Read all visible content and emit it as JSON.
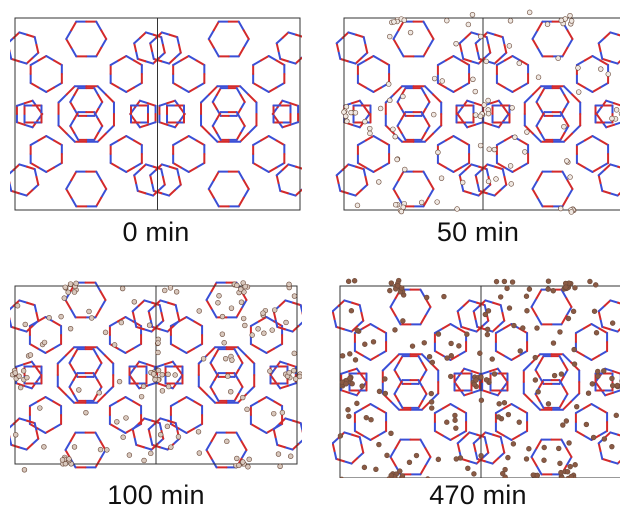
{
  "panels": [
    {
      "caption": "0 min",
      "adsorbate_density": 0,
      "adsorbate_color": "#e9e1dc"
    },
    {
      "caption": "50 min",
      "adsorbate_density": 0.45,
      "adsorbate_color": "#efe8e2"
    },
    {
      "caption": "100 min",
      "adsorbate_density": 0.7,
      "adsorbate_color": "#d8c8bd"
    },
    {
      "caption": "470 min",
      "adsorbate_density": 1.0,
      "adsorbate_color": "#8a5a44"
    }
  ],
  "colors": {
    "framework_oxygen": "#d42a2a",
    "framework_silicon": "#3a4fd6",
    "cell_border": "#333333"
  }
}
